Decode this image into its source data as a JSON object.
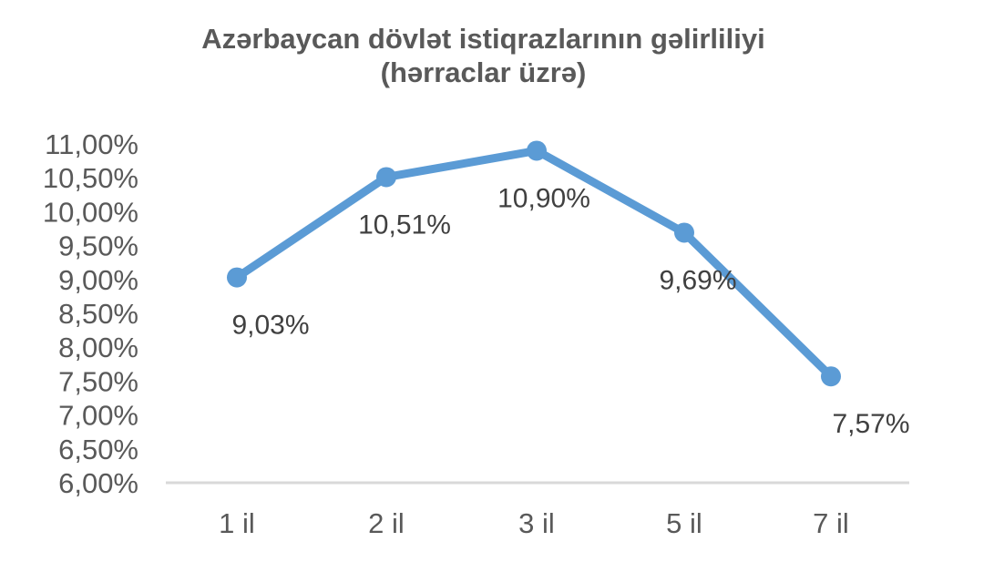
{
  "chart_data": {
    "type": "line",
    "title": "Azərbaycan dövlət istiqrazlarının gəlirliliyi",
    "subtitle": "(hərraclar üzrə)",
    "categories": [
      "1 il",
      "2 il",
      "3 il",
      "5 il",
      "7 il"
    ],
    "series": [
      {
        "values": [
          9.03,
          10.51,
          10.9,
          9.69,
          7.57
        ],
        "labels": [
          "9,03%",
          "10,51%",
          "10,90%",
          "9,69%",
          "7,57%"
        ],
        "color": "#5b9bd5"
      }
    ],
    "y_ticks": [
      "6,00%",
      "6,50%",
      "7,00%",
      "7,50%",
      "8,00%",
      "8,50%",
      "9,00%",
      "9,50%",
      "10,00%",
      "10,50%",
      "11,00%"
    ],
    "ylim": [
      6,
      11
    ],
    "grid": false,
    "legend": "none"
  }
}
